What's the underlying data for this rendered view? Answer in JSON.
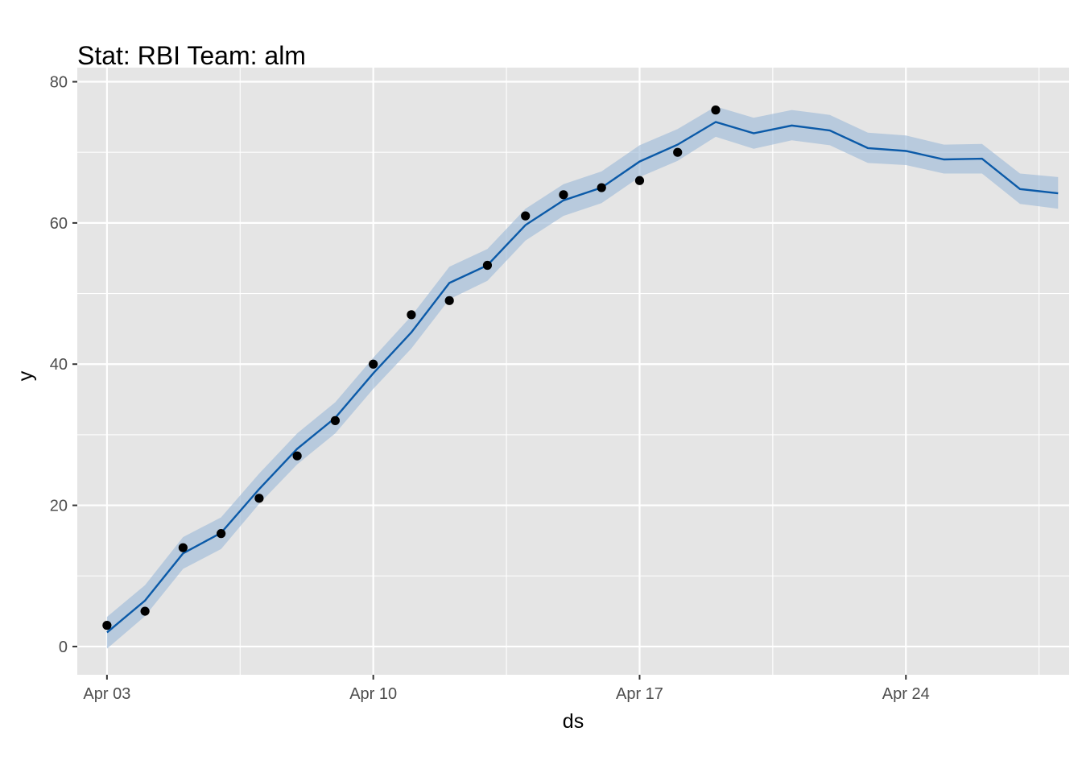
{
  "chart_data": {
    "type": "line",
    "title": "Stat: RBI Team: alm",
    "xlabel": "ds",
    "ylabel": "y",
    "xlim": [
      "2018-04-02",
      "2018-04-28"
    ],
    "ylim": [
      -4,
      80
    ],
    "x_ticks": [
      {
        "date": "2018-04-03",
        "label": "Apr 03"
      },
      {
        "date": "2018-04-10",
        "label": "Apr 10"
      },
      {
        "date": "2018-04-17",
        "label": "Apr 17"
      },
      {
        "date": "2018-04-24",
        "label": "Apr 24"
      }
    ],
    "y_ticks": [
      0,
      20,
      40,
      60,
      80
    ],
    "grid": true,
    "legend": "none",
    "colors": {
      "panel": "#e5e5e5",
      "grid": "#ffffff",
      "forecast_line": "#0b5aa8",
      "interval_band": "#9fbcd8",
      "points": "#000000",
      "tick_text": "#4d4d4d",
      "axis_title": "#000000"
    },
    "observed": {
      "x": [
        "2018-04-03",
        "2018-04-04",
        "2018-04-05",
        "2018-04-06",
        "2018-04-07",
        "2018-04-08",
        "2018-04-09",
        "2018-04-10",
        "2018-04-11",
        "2018-04-12",
        "2018-04-13",
        "2018-04-14",
        "2018-04-15",
        "2018-04-16",
        "2018-04-17",
        "2018-04-18",
        "2018-04-19"
      ],
      "y": [
        3,
        5,
        14,
        16,
        21,
        27,
        32,
        40,
        47,
        49,
        54,
        61,
        64,
        65,
        66,
        70,
        76
      ]
    },
    "forecast": {
      "x": [
        "2018-04-03",
        "2018-04-04",
        "2018-04-05",
        "2018-04-06",
        "2018-04-07",
        "2018-04-08",
        "2018-04-09",
        "2018-04-10",
        "2018-04-11",
        "2018-04-12",
        "2018-04-13",
        "2018-04-14",
        "2018-04-15",
        "2018-04-16",
        "2018-04-17",
        "2018-04-18",
        "2018-04-19",
        "2018-04-20",
        "2018-04-21",
        "2018-04-22",
        "2018-04-23",
        "2018-04-24",
        "2018-04-25",
        "2018-04-26",
        "2018-04-27",
        "2018-04-28"
      ],
      "yhat": [
        2,
        6.5,
        13.2,
        16.1,
        22.3,
        28,
        32.4,
        38.7,
        44.5,
        51.5,
        54,
        59.7,
        63.2,
        65,
        68.7,
        71.1,
        74.3,
        72.7,
        73.8,
        73.1,
        70.6,
        70.2,
        69,
        69.1,
        64.8,
        64.2
      ],
      "lower": [
        -0.3,
        4.3,
        11,
        13.8,
        20.2,
        25.8,
        30.2,
        36.5,
        42.2,
        49.2,
        51.8,
        57.5,
        61,
        62.8,
        66.5,
        68.8,
        72.2,
        70.5,
        71.7,
        71,
        68.5,
        68.2,
        67,
        67,
        62.7,
        62
      ],
      "upper": [
        4.2,
        8.7,
        15.5,
        18.3,
        24.5,
        30.2,
        34.6,
        40.9,
        46.8,
        53.8,
        56.3,
        62,
        65.5,
        67.3,
        71,
        73.3,
        76.5,
        74.9,
        76,
        75.3,
        72.8,
        72.4,
        71.1,
        71.2,
        67,
        66.5
      ]
    }
  }
}
